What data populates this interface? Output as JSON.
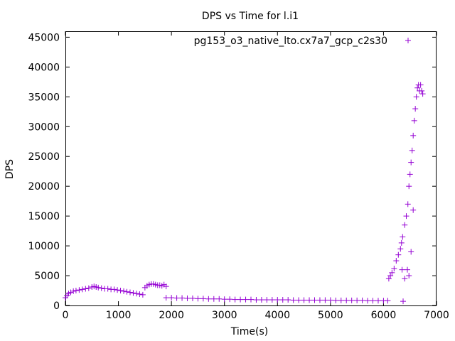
{
  "chart_data": {
    "type": "scatter",
    "title": "DPS vs Time for l.i1",
    "xlabel": "Time(s)",
    "ylabel": "DPS",
    "xlim": [
      0,
      7000
    ],
    "ylim": [
      0,
      46000
    ],
    "x_ticks": [
      0,
      1000,
      2000,
      3000,
      4000,
      5000,
      6000,
      7000
    ],
    "y_ticks": [
      0,
      5000,
      10000,
      15000,
      20000,
      25000,
      30000,
      35000,
      40000,
      45000
    ],
    "x_tick_labels": [
      "0",
      "1000",
      "2000",
      "3000",
      "4000",
      "5000",
      "6000",
      "7000"
    ],
    "y_tick_labels": [
      "0",
      "5000",
      "10000",
      "15000",
      "20000",
      "25000",
      "30000",
      "35000",
      "40000",
      "45000"
    ],
    "grid": false,
    "legend_position": "top-right",
    "marker": "+",
    "series": [
      {
        "name": "pg153_o3_native_lto.cx7a7_gcp_c2s30",
        "color": "#9400d3",
        "x": [
          0,
          30,
          60,
          100,
          150,
          200,
          260,
          320,
          380,
          440,
          500,
          540,
          580,
          620,
          680,
          740,
          800,
          860,
          920,
          980,
          1040,
          1100,
          1160,
          1220,
          1280,
          1340,
          1400,
          1460,
          1500,
          1540,
          1580,
          1620,
          1660,
          1700,
          1740,
          1780,
          1820,
          1860,
          1900,
          1900,
          2000,
          2100,
          2200,
          2300,
          2400,
          2500,
          2600,
          2700,
          2800,
          2900,
          3000,
          3100,
          3200,
          3300,
          3400,
          3500,
          3600,
          3700,
          3800,
          3900,
          4000,
          4100,
          4200,
          4300,
          4400,
          4500,
          4600,
          4700,
          4800,
          4900,
          5000,
          5100,
          5200,
          5300,
          5400,
          5500,
          5600,
          5700,
          5800,
          5900,
          6000,
          6080,
          6100,
          6130,
          6160,
          6200,
          6240,
          6280,
          6320,
          6340,
          6360,
          6400,
          6430,
          6460,
          6480,
          6500,
          6520,
          6540,
          6560,
          6580,
          6600,
          6620,
          6640,
          6660,
          6680,
          6700,
          6720,
          6740,
          6350,
          6400,
          6370,
          6450,
          6480,
          6520,
          6560
        ],
        "y": [
          1300,
          1700,
          2000,
          2200,
          2400,
          2500,
          2600,
          2700,
          2800,
          2900,
          3100,
          3200,
          3100,
          3000,
          2900,
          2800,
          2800,
          2700,
          2700,
          2600,
          2500,
          2400,
          2300,
          2200,
          2100,
          2000,
          1900,
          1800,
          3000,
          3300,
          3500,
          3600,
          3600,
          3500,
          3400,
          3400,
          3300,
          3500,
          3200,
          1300,
          1300,
          1250,
          1250,
          1200,
          1200,
          1150,
          1150,
          1100,
          1100,
          1100,
          1050,
          1050,
          1000,
          1000,
          1000,
          1000,
          950,
          950,
          950,
          950,
          950,
          950,
          950,
          900,
          900,
          900,
          900,
          900,
          900,
          900,
          900,
          850,
          850,
          850,
          850,
          850,
          850,
          800,
          800,
          800,
          800,
          800,
          4500,
          5000,
          5500,
          6200,
          7500,
          8500,
          9500,
          10500,
          11500,
          13500,
          15000,
          17000,
          20000,
          22000,
          24000,
          26000,
          28500,
          31000,
          33000,
          35000,
          36500,
          37000,
          36000,
          37000,
          36000,
          35500,
          6000,
          4500,
          700,
          6000,
          5000,
          9000,
          16000
        ]
      }
    ]
  }
}
